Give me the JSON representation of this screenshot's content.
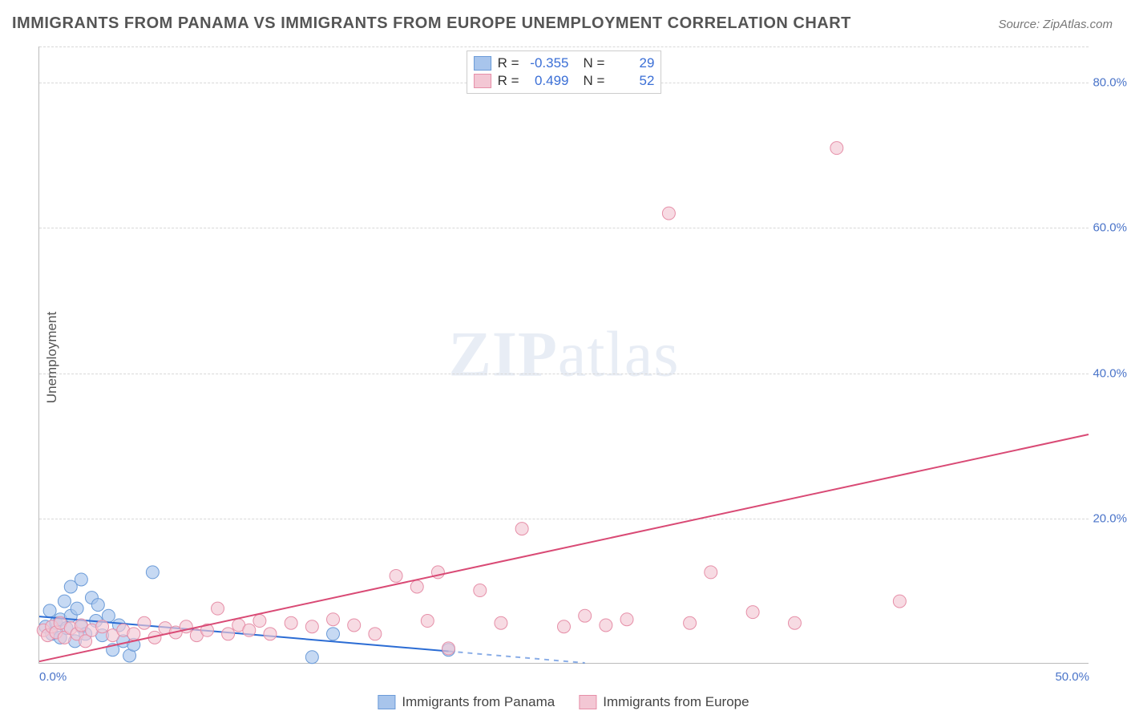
{
  "title": "IMMIGRANTS FROM PANAMA VS IMMIGRANTS FROM EUROPE UNEMPLOYMENT CORRELATION CHART",
  "source": "Source: ZipAtlas.com",
  "ylabel": "Unemployment",
  "watermark_a": "ZIP",
  "watermark_b": "atlas",
  "chart": {
    "type": "scatter-with-regression",
    "xlim": [
      0,
      50
    ],
    "ylim": [
      0,
      85
    ],
    "xticks": [
      {
        "v": 0,
        "label": "0.0%",
        "pos": "left"
      },
      {
        "v": 50,
        "label": "50.0%",
        "pos": "right"
      }
    ],
    "yticks": [
      {
        "v": 20,
        "label": "20.0%"
      },
      {
        "v": 40,
        "label": "40.0%"
      },
      {
        "v": 60,
        "label": "60.0%"
      },
      {
        "v": 80,
        "label": "80.0%"
      }
    ],
    "grid_y": [
      20,
      40,
      60,
      80,
      85
    ],
    "grid_color": "#d8d8d8",
    "background_color": "#ffffff",
    "axis_color": "#bbbbbb",
    "tick_label_color": "#4a74c9",
    "marker_radius": 8,
    "marker_stroke_width": 1,
    "line_width": 2,
    "series": [
      {
        "key": "panama",
        "label": "Immigrants from Panama",
        "color_fill": "#a8c5ec",
        "color_stroke": "#6b9bd8",
        "line_color": "#2b6cd4",
        "R": "-0.355",
        "N": "29",
        "regression": {
          "x1": 0,
          "y1": 6.4,
          "x2_solid": 19.5,
          "y2_solid": 1.6,
          "x2_dash": 26,
          "y2_dash": 0
        },
        "points": [
          [
            0.3,
            5.0
          ],
          [
            0.5,
            7.2
          ],
          [
            0.6,
            4.0
          ],
          [
            0.8,
            5.5
          ],
          [
            1.0,
            3.5
          ],
          [
            1.0,
            6.0
          ],
          [
            1.2,
            8.5
          ],
          [
            1.3,
            4.8
          ],
          [
            1.5,
            10.5
          ],
          [
            1.5,
            6.5
          ],
          [
            1.7,
            3.0
          ],
          [
            1.8,
            7.5
          ],
          [
            2.0,
            11.5
          ],
          [
            2.0,
            5.0
          ],
          [
            2.2,
            4.0
          ],
          [
            2.5,
            9.0
          ],
          [
            2.7,
            5.8
          ],
          [
            2.8,
            8.0
          ],
          [
            3.0,
            3.8
          ],
          [
            3.3,
            6.5
          ],
          [
            3.5,
            1.8
          ],
          [
            3.8,
            5.2
          ],
          [
            4.0,
            3.0
          ],
          [
            4.3,
            1.0
          ],
          [
            4.5,
            2.5
          ],
          [
            5.4,
            12.5
          ],
          [
            13.0,
            0.8
          ],
          [
            14.0,
            4.0
          ],
          [
            19.5,
            1.8
          ]
        ]
      },
      {
        "key": "europe",
        "label": "Immigrants from Europe",
        "color_fill": "#f3c7d4",
        "color_stroke": "#e68fa8",
        "line_color": "#d94a75",
        "R": "0.499",
        "N": "52",
        "regression": {
          "x1": 0,
          "y1": 0.2,
          "x2_solid": 50,
          "y2_solid": 31.5
        },
        "points": [
          [
            0.2,
            4.5
          ],
          [
            0.4,
            3.8
          ],
          [
            0.6,
            5.0
          ],
          [
            0.8,
            4.2
          ],
          [
            1.0,
            5.5
          ],
          [
            1.2,
            3.5
          ],
          [
            1.5,
            4.8
          ],
          [
            1.8,
            4.0
          ],
          [
            2.0,
            5.2
          ],
          [
            2.2,
            3.0
          ],
          [
            2.5,
            4.5
          ],
          [
            3.0,
            5.0
          ],
          [
            3.5,
            3.8
          ],
          [
            4.0,
            4.5
          ],
          [
            4.5,
            4.0
          ],
          [
            5.0,
            5.5
          ],
          [
            5.5,
            3.5
          ],
          [
            6.0,
            4.8
          ],
          [
            6.5,
            4.2
          ],
          [
            7.0,
            5.0
          ],
          [
            7.5,
            3.8
          ],
          [
            8.0,
            4.5
          ],
          [
            8.5,
            7.5
          ],
          [
            9.0,
            4.0
          ],
          [
            9.5,
            5.2
          ],
          [
            10.0,
            4.5
          ],
          [
            10.5,
            5.8
          ],
          [
            11.0,
            4.0
          ],
          [
            12.0,
            5.5
          ],
          [
            13.0,
            5.0
          ],
          [
            14.0,
            6.0
          ],
          [
            15.0,
            5.2
          ],
          [
            16.0,
            4.0
          ],
          [
            17.0,
            12.0
          ],
          [
            18.0,
            10.5
          ],
          [
            18.5,
            5.8
          ],
          [
            19.0,
            12.5
          ],
          [
            19.5,
            2.0
          ],
          [
            21.0,
            10.0
          ],
          [
            22.0,
            5.5
          ],
          [
            23.0,
            18.5
          ],
          [
            25.0,
            5.0
          ],
          [
            26.0,
            6.5
          ],
          [
            27.0,
            5.2
          ],
          [
            28.0,
            6.0
          ],
          [
            30.0,
            62.0
          ],
          [
            31.0,
            5.5
          ],
          [
            32.0,
            12.5
          ],
          [
            34.0,
            7.0
          ],
          [
            36.0,
            5.5
          ],
          [
            38.0,
            71.0
          ],
          [
            41.0,
            8.5
          ]
        ]
      }
    ]
  },
  "legend_top": {
    "r_label": "R =",
    "n_label": "N ="
  }
}
